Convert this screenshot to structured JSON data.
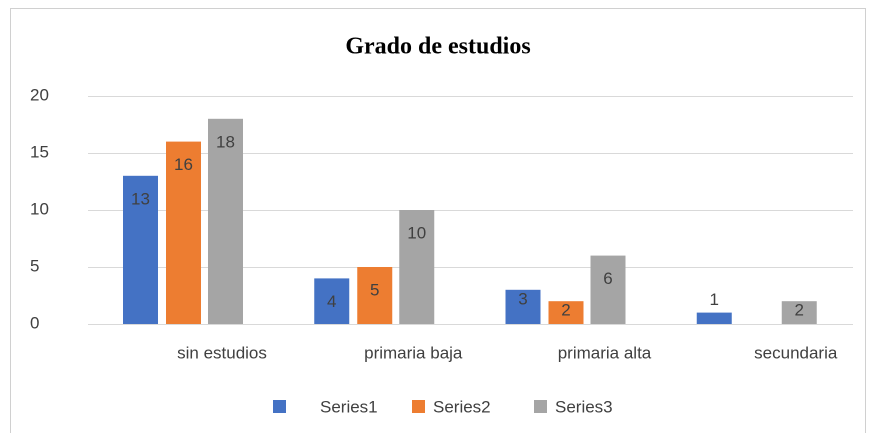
{
  "chart_data": {
    "type": "bar",
    "title": "Grado de estudios",
    "categories": [
      "sin estudios",
      "primaria baja",
      "primaria alta",
      "secundaria"
    ],
    "series": [
      {
        "name": "Series1",
        "color": "#4472c4",
        "values": [
          13,
          4,
          3,
          1
        ]
      },
      {
        "name": "Series2",
        "color": "#ed7d31",
        "values": [
          16,
          5,
          2,
          null
        ]
      },
      {
        "name": "Series3",
        "color": "#a5a5a5",
        "values": [
          18,
          10,
          6,
          2
        ]
      }
    ],
    "ylim": [
      0,
      20
    ],
    "yticks": [
      0,
      5,
      10,
      15,
      20
    ],
    "grid": true,
    "legend": "bottom"
  }
}
